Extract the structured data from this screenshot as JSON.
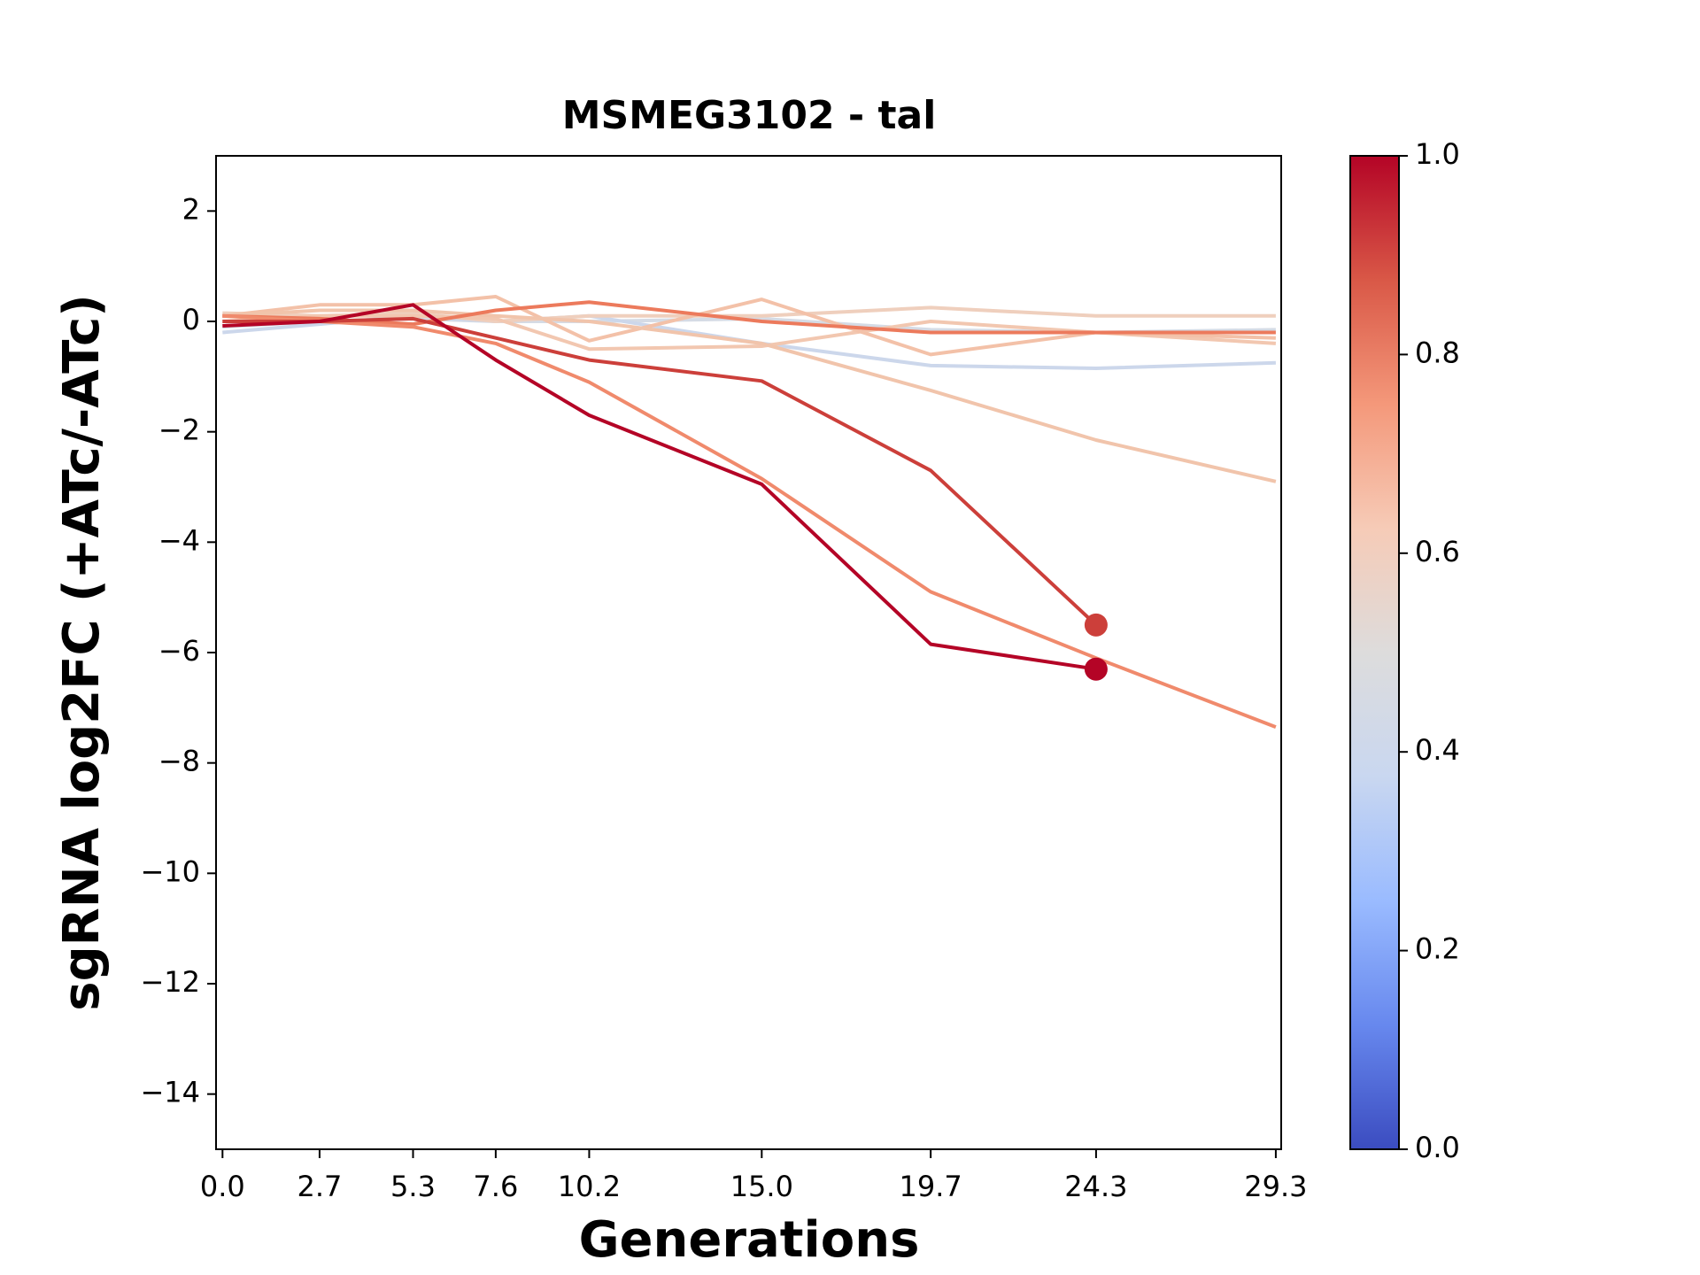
{
  "chart_data": {
    "type": "line",
    "title": "MSMEG3102 - tal",
    "xlabel": "Generations",
    "ylabel": "sgRNA log2FC (+ATc/-ATc)",
    "x": [
      0,
      2.7,
      5.3,
      7.6,
      10.2,
      15.0,
      19.7,
      24.3,
      29.3
    ],
    "xlim": [
      -0.18,
      29.45
    ],
    "xticks": [
      {
        "value": 0,
        "label": "0.0"
      },
      2.7,
      5.3,
      7.6,
      10.2,
      {
        "value": 15.0,
        "label": "15.0"
      },
      19.7,
      24.3,
      29.3
    ],
    "ylim": [
      -15,
      3
    ],
    "yticks": [
      {
        "value": -14,
        "label": "−14"
      },
      {
        "value": -12,
        "label": "−12"
      },
      {
        "value": -10,
        "label": "−10"
      },
      {
        "value": -8,
        "label": "−8"
      },
      {
        "value": -6,
        "label": "−6"
      },
      {
        "value": -4,
        "label": "−4"
      },
      {
        "value": -2,
        "label": "−2"
      },
      0,
      2
    ],
    "grid": false,
    "series": [
      {
        "color": "#d5dbe5",
        "values": [
          -0.1,
          0.0,
          0.05,
          0.0,
          0.0,
          0.05,
          -0.15,
          -0.2,
          -0.15
        ]
      },
      {
        "color": "#ccd7eb",
        "values": [
          -0.2,
          -0.05,
          0.1,
          0.0,
          0.1,
          -0.4,
          -0.8,
          -0.85,
          -0.75
        ]
      },
      {
        "color": "#efcfbd",
        "values": [
          0.15,
          0.1,
          0.15,
          0.0,
          0.1,
          0.1,
          0.25,
          0.1,
          0.1
        ]
      },
      {
        "color": "#f2c7b0",
        "values": [
          0.0,
          0.1,
          0.1,
          0.05,
          -0.5,
          -0.45,
          0.0,
          -0.2,
          -0.4
        ]
      },
      {
        "color": "#f3c1a8",
        "values": [
          0.1,
          0.3,
          0.3,
          0.45,
          -0.35,
          0.4,
          -0.6,
          -0.2,
          -0.3
        ]
      },
      {
        "color": "#f1c4ab",
        "values": [
          0.1,
          0.2,
          0.2,
          0.1,
          0.0,
          -0.4,
          -1.25,
          -2.15,
          -2.9
        ]
      },
      {
        "color": "#ec7a5c",
        "values": [
          0.1,
          0.05,
          -0.05,
          0.2,
          0.35,
          0.0,
          -0.2,
          -0.2,
          -0.2
        ]
      },
      {
        "color": "#f08a6c",
        "values": [
          0.1,
          0.0,
          -0.1,
          -0.4,
          -1.1,
          -2.85,
          -4.9,
          -6.1,
          -7.35
        ]
      },
      {
        "color": "#cc3f3a",
        "values": [
          0.0,
          0.0,
          0.05,
          -0.3,
          -0.7,
          -1.08,
          -2.7,
          -5.5,
          null
        ],
        "end_marker": true
      },
      {
        "color": "#b40426",
        "values": [
          -0.08,
          0.0,
          0.3,
          -0.7,
          -1.7,
          -2.95,
          -5.85,
          -6.3,
          null
        ],
        "end_marker": true
      }
    ],
    "colorbar": {
      "lim": [
        0,
        1
      ],
      "ticks": [
        {
          "value": 0,
          "label": "0.0"
        },
        {
          "value": 0.2,
          "label": "0.2"
        },
        {
          "value": 0.4,
          "label": "0.4"
        },
        {
          "value": 0.6,
          "label": "0.6"
        },
        {
          "value": 0.8,
          "label": "0.8"
        },
        {
          "value": 1,
          "label": "1.0"
        }
      ],
      "colors": [
        "#3b4cc0",
        "#6788ee",
        "#9abbff",
        "#c9d7f0",
        "#dddcdc",
        "#f6cbb7",
        "#f4987a",
        "#d95847",
        "#b40426"
      ]
    }
  }
}
